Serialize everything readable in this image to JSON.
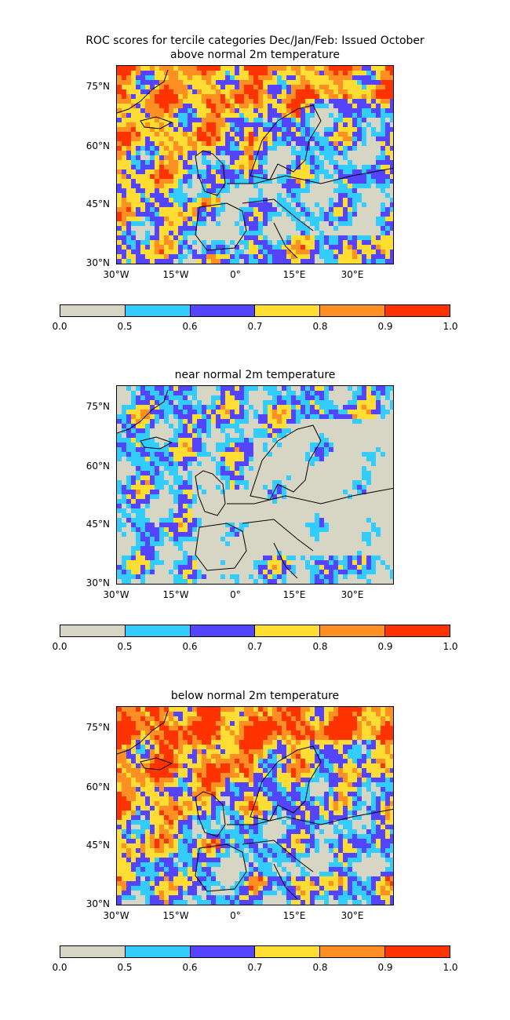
{
  "title_line1": "ROC scores for tercile categories Dec/Jan/Feb: Issued October",
  "colors": [
    "#d7d6c4",
    "#33ccff",
    "#5544ff",
    "#ffdd33",
    "#ff8f22",
    "#ff3300"
  ],
  "colorbar_ticks": [
    "0.0",
    "0.5",
    "0.6",
    "0.7",
    "0.8",
    "0.9",
    "1.0"
  ],
  "lat_labels": [
    "75°N",
    "60°N",
    "45°N",
    "30°N"
  ],
  "lon_labels": [
    "30°W",
    "15°W",
    "0°",
    "15°E",
    "30°E"
  ],
  "panels": [
    {
      "subtitle": "above normal 2m temperature"
    },
    {
      "subtitle": "near normal 2m temperature"
    },
    {
      "subtitle": "below normal 2m temperature"
    }
  ]
}
